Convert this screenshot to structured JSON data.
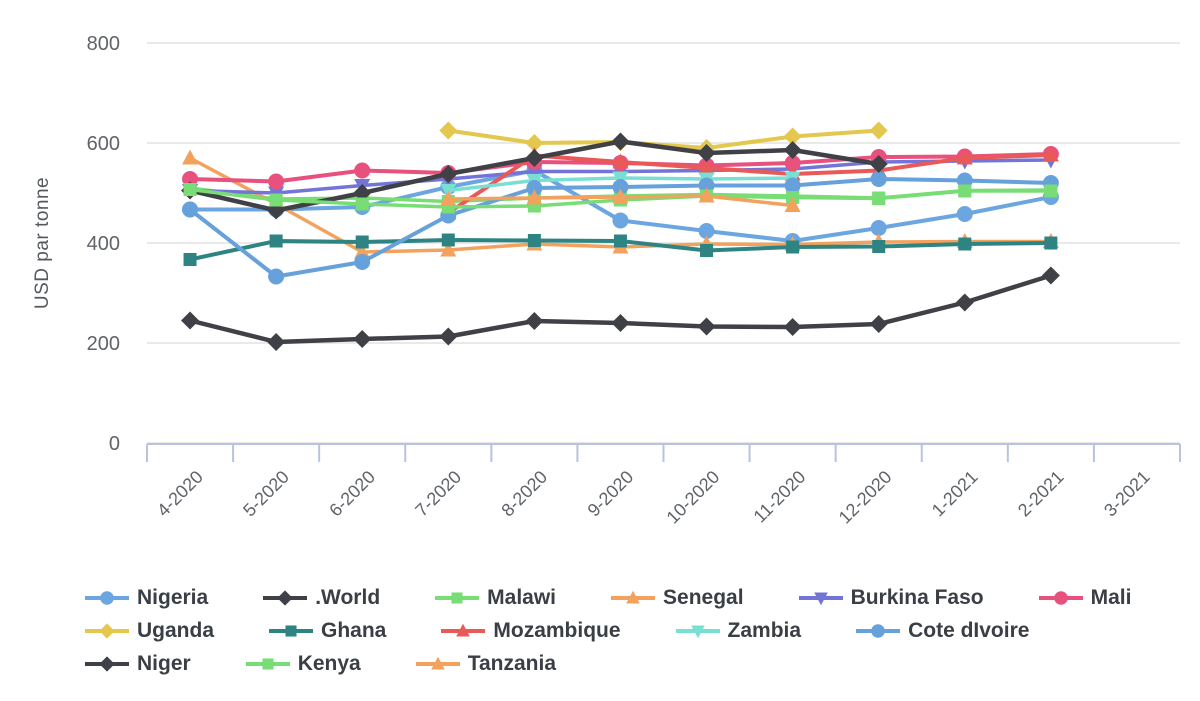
{
  "chart_data": {
    "type": "line",
    "title": "",
    "xlabel": "",
    "ylabel": "USD par tonne",
    "ylim": [
      0,
      800
    ],
    "y_ticks": [
      0,
      200,
      400,
      600,
      800
    ],
    "grid": true,
    "legend_position": "bottom",
    "x": [
      "4-2020",
      "5-2020",
      "6-2020",
      "7-2020",
      "8-2020",
      "9-2020",
      "10-2020",
      "11-2020",
      "12-2020",
      "1-2021",
      "2-2021",
      "3-2021"
    ],
    "series": [
      {
        "name": "Nigeria",
        "color": "#6CA6E0",
        "marker": "circle",
        "width": 4,
        "values": [
          467,
          467,
          472,
          512,
          545,
          445,
          424,
          404,
          430,
          458,
          492,
          null
        ]
      },
      {
        "name": ".World",
        "color": "#3F4146",
        "marker": "diamond",
        "width": 4.5,
        "values": [
          245,
          202,
          208,
          213,
          244,
          240,
          233,
          232,
          238,
          281,
          335,
          null
        ]
      },
      {
        "name": "Malawi",
        "color": "#77DD74",
        "marker": "square",
        "width": 3.5,
        "values": [
          510,
          488,
          490,
          483,
          490,
          494,
          497,
          494,
          490,
          505,
          506,
          null
        ]
      },
      {
        "name": "Senegal",
        "color": "#F2A25C",
        "marker": "triangle-up",
        "width": 3.5,
        "values": [
          570,
          478,
          382,
          386,
          398,
          392,
          398,
          397,
          402,
          403,
          403,
          null
        ]
      },
      {
        "name": "Burkina Faso",
        "color": "#7274D8",
        "marker": "triangle-down",
        "width": 3.5,
        "values": [
          505,
          500,
          515,
          528,
          543,
          543,
          545,
          548,
          562,
          564,
          566,
          null
        ]
      },
      {
        "name": "Mali",
        "color": "#E8507E",
        "marker": "circle",
        "width": 4,
        "values": [
          528,
          523,
          545,
          540,
          562,
          560,
          555,
          560,
          572,
          573,
          578,
          null
        ]
      },
      {
        "name": "Uganda",
        "color": "#E3C74F",
        "marker": "diamond",
        "width": 4,
        "values": [
          null,
          null,
          null,
          625,
          600,
          602,
          590,
          613,
          625,
          null,
          null,
          null
        ]
      },
      {
        "name": "Ghana",
        "color": "#2E8482",
        "marker": "square",
        "width": 4,
        "values": [
          367,
          404,
          402,
          406,
          405,
          404,
          385,
          392,
          393,
          398,
          400,
          null
        ]
      },
      {
        "name": "Mozambique",
        "color": "#E85958",
        "marker": "triangle-up",
        "width": 4,
        "values": [
          null,
          null,
          null,
          460,
          575,
          562,
          550,
          538,
          545,
          570,
          576,
          null
        ]
      },
      {
        "name": "Zambia",
        "color": "#79DFD2",
        "marker": "triangle-down",
        "width": 3.5,
        "values": [
          null,
          null,
          null,
          505,
          525,
          530,
          528,
          530,
          null,
          null,
          null,
          null
        ]
      },
      {
        "name": "Cote dIvoire",
        "color": "#66A1DB",
        "marker": "circle",
        "width": 4,
        "values": [
          467,
          333,
          362,
          455,
          510,
          512,
          515,
          515,
          528,
          525,
          520,
          null
        ]
      },
      {
        "name": "Niger",
        "color": "#3F4146",
        "marker": "diamond",
        "width": 4.5,
        "values": [
          505,
          465,
          500,
          538,
          570,
          603,
          580,
          586,
          558,
          null,
          null,
          null
        ]
      },
      {
        "name": "Kenya",
        "color": "#77DD74",
        "marker": "square",
        "width": 3.5,
        "values": [
          507,
          486,
          478,
          472,
          474,
          486,
          494,
          491,
          489,
          504,
          504,
          null
        ]
      },
      {
        "name": "Tanzania",
        "color": "#F2A25C",
        "marker": "triangle-up",
        "width": 3.5,
        "values": [
          null,
          null,
          null,
          488,
          490,
          492,
          494,
          475,
          null,
          null,
          null,
          null
        ]
      }
    ]
  },
  "legend": {
    "rows": [
      [
        "Nigeria",
        ".World",
        "Malawi",
        "Senegal",
        "Burkina Faso",
        "Mali"
      ],
      [
        "Uganda",
        "Ghana",
        "Mozambique",
        "Zambia",
        "Cote dIvoire"
      ],
      [
        "Niger",
        "Kenya",
        "Tanzania"
      ]
    ]
  },
  "style": {
    "grid_color": "#e9e9e9",
    "axis_color": "#b7c3e0",
    "background": "#ffffff"
  }
}
